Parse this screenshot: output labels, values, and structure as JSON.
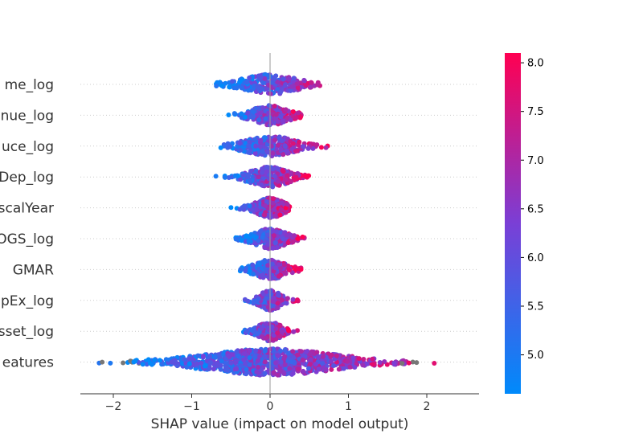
{
  "chart_data": {
    "type": "scatter",
    "subtype": "shap-beeswarm",
    "xlabel": "SHAP value (impact on model output)",
    "xlim": [
      -2.4,
      2.7
    ],
    "x_ticks": [
      -2,
      -1,
      0,
      1,
      2
    ],
    "x_tick_labels": [
      "−2",
      "−1",
      "0",
      "1",
      "2"
    ],
    "features": [
      {
        "label": "me_log",
        "min": -0.7,
        "max": 0.85,
        "spread": 0.3,
        "center": 0.0
      },
      {
        "label": "nue_log",
        "min": -0.55,
        "max": 0.4,
        "spread": 0.2,
        "center": 0.0
      },
      {
        "label": "uce_log",
        "min": -0.65,
        "max": 0.75,
        "spread": 0.28,
        "center": 0.0
      },
      {
        "label": "Dep_log",
        "min": -0.7,
        "max": 0.5,
        "spread": 0.22,
        "center": 0.0
      },
      {
        "label": "scalYear",
        "min": -0.5,
        "max": 0.25,
        "spread": 0.15,
        "center": 0.0
      },
      {
        "label": "OGS_log",
        "min": -0.45,
        "max": 0.45,
        "spread": 0.18,
        "center": 0.0
      },
      {
        "label": "GMAR",
        "min": -0.4,
        "max": 0.4,
        "spread": 0.17,
        "center": 0.0
      },
      {
        "label": "pEx_log",
        "min": -0.55,
        "max": 0.47,
        "spread": 0.12,
        "center": 0.0
      },
      {
        "label": "sset_log",
        "min": -0.55,
        "max": 0.35,
        "spread": 0.12,
        "center": 0.0
      },
      {
        "label": "eatures",
        "min": -2.2,
        "max": 2.45,
        "spread": 0.75,
        "center": 0.0
      }
    ],
    "colorbar": {
      "min": 4.6,
      "max": 8.1,
      "ticks": [
        5.0,
        5.5,
        6.0,
        6.5,
        7.0,
        7.5,
        8.0
      ],
      "tick_labels": [
        "5.0",
        "5.5",
        "6.0",
        "6.5",
        "7.0",
        "7.5",
        "8.0"
      ],
      "colors": [
        "#008afb",
        "#7a3fd6",
        "#ff0052"
      ]
    },
    "missing_value_color": "#777777",
    "zero_line_color": "#999999"
  }
}
